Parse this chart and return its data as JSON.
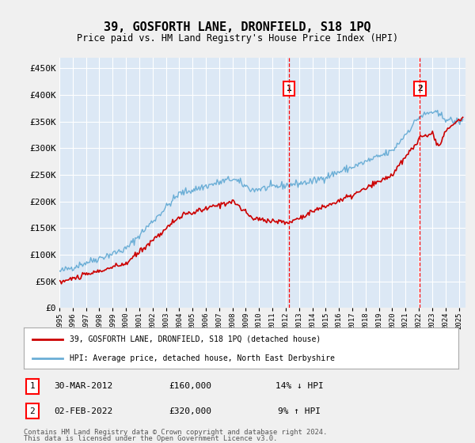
{
  "title": "39, GOSFORTH LANE, DRONFIELD, S18 1PQ",
  "subtitle": "Price paid vs. HM Land Registry's House Price Index (HPI)",
  "legend_line1": "39, GOSFORTH LANE, DRONFIELD, S18 1PQ (detached house)",
  "legend_line2": "HPI: Average price, detached house, North East Derbyshire",
  "footer1": "Contains HM Land Registry data © Crown copyright and database right 2024.",
  "footer2": "This data is licensed under the Open Government Licence v3.0.",
  "annotation1_label": "1",
  "annotation1_date": "30-MAR-2012",
  "annotation1_price": "£160,000",
  "annotation1_hpi": "14% ↓ HPI",
  "annotation2_label": "2",
  "annotation2_date": "02-FEB-2022",
  "annotation2_price": "£320,000",
  "annotation2_hpi": "9% ↑ HPI",
  "sale1_year": 2012.25,
  "sale1_price": 160000,
  "sale2_year": 2022.08,
  "sale2_price": 320000,
  "hpi_color": "#6baed6",
  "price_color": "#cc0000",
  "fig_bg_color": "#f0f0f0",
  "plot_bg_color": "#dce8f5",
  "grid_color": "#ffffff",
  "ylim": [
    0,
    470000
  ],
  "xlim_start": 1995,
  "xlim_end": 2025.5
}
